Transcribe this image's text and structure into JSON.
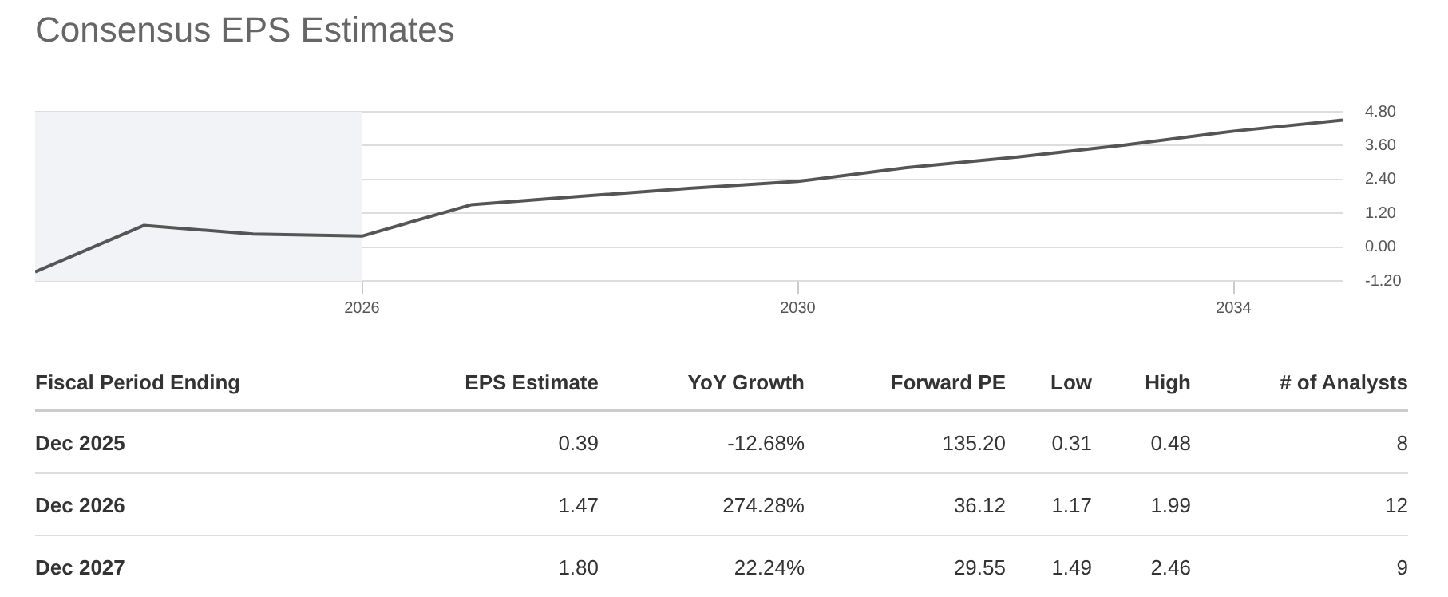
{
  "chart_data": {
    "type": "line",
    "title": "Consensus EPS Estimates",
    "x": [
      2023,
      2024,
      2025,
      2026,
      2027,
      2028,
      2029,
      2030,
      2031,
      2032,
      2033,
      2034,
      2035
    ],
    "series": [
      {
        "color": "#555555",
        "values": [
          -0.88,
          0.77,
          0.46,
          0.39,
          1.5,
          1.8,
          2.08,
          2.33,
          2.82,
          3.19,
          3.62,
          4.11,
          4.5
        ]
      }
    ],
    "xlim": [
      2023,
      2035
    ],
    "xticks": [
      2026,
      2030,
      2034
    ],
    "ylim": [
      -1.2,
      4.8
    ],
    "yticks": [
      {
        "value": -1.2,
        "label": "-1.20"
      },
      {
        "value": 0,
        "label": "0.00"
      },
      {
        "value": 1.2,
        "label": "1.20"
      },
      {
        "value": 2.4,
        "label": "2.40"
      },
      {
        "value": 3.6,
        "label": "3.60"
      },
      {
        "value": 4.8,
        "label": "4.80"
      }
    ],
    "bands": [
      {
        "axis": "x",
        "from": 2023,
        "to": 2026,
        "color": "#f2f3f7"
      }
    ],
    "grid": "y",
    "legend": false,
    "marker": "none",
    "line_style": "solid",
    "annotations": [
      "Fiscal Period Ending",
      "EPS Estimate",
      "YoY Growth",
      "Forward PE",
      "Low",
      "High",
      "# of Analysts",
      "Dec 2025",
      "0.39",
      "-12.68%",
      "135.20",
      "0.31",
      "0.48",
      "8",
      "Dec 2026",
      "1.47",
      "274.28%",
      "36.12",
      "1.17",
      "1.99",
      "12",
      "Dec 2027",
      "1.80",
      "22.24%",
      "29.55",
      "1.49",
      "2.46",
      "9"
    ]
  }
}
